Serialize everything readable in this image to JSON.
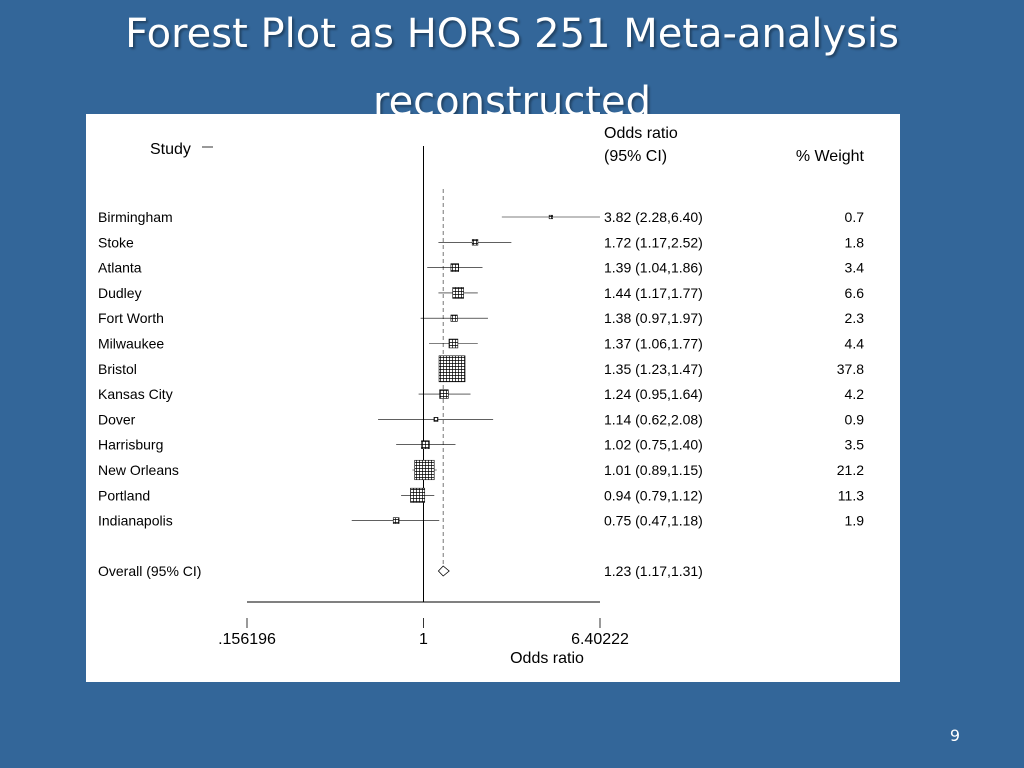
{
  "slide": {
    "title_line1": "Forest Plot as HORS 251 Meta-analysis",
    "title_line2": "reconstructed",
    "page_number": "9",
    "background_color": "#336699"
  },
  "chart_data": {
    "type": "forest",
    "header": {
      "study": "Study",
      "or_line1": "Odds ratio",
      "or_line2": "(95% CI)",
      "weight": "% Weight"
    },
    "xlabel": "Odds ratio",
    "x_scale": "log",
    "x_ticks": [
      {
        "value": 0.156196,
        "label": ".156196"
      },
      {
        "value": 1,
        "label": "1"
      },
      {
        "value": 6.40222,
        "label": "6.40222"
      }
    ],
    "xlim": [
      0.156196,
      6.40222
    ],
    "reference_line": 1,
    "studies": [
      {
        "name": "Birmingham",
        "or": 3.82,
        "lo": 2.28,
        "hi": 6.4,
        "ci_text": "3.82 (2.28,6.40)",
        "weight": "0.7"
      },
      {
        "name": "Stoke",
        "or": 1.72,
        "lo": 1.17,
        "hi": 2.52,
        "ci_text": "1.72 (1.17,2.52)",
        "weight": "1.8"
      },
      {
        "name": "Atlanta",
        "or": 1.39,
        "lo": 1.04,
        "hi": 1.86,
        "ci_text": "1.39 (1.04,1.86)",
        "weight": "3.4"
      },
      {
        "name": "Dudley",
        "or": 1.44,
        "lo": 1.17,
        "hi": 1.77,
        "ci_text": "1.44 (1.17,1.77)",
        "weight": "6.6"
      },
      {
        "name": "Fort Worth",
        "or": 1.38,
        "lo": 0.97,
        "hi": 1.97,
        "ci_text": "1.38 (0.97,1.97)",
        "weight": "2.3"
      },
      {
        "name": "Milwaukee",
        "or": 1.37,
        "lo": 1.06,
        "hi": 1.77,
        "ci_text": "1.37 (1.06,1.77)",
        "weight": "4.4"
      },
      {
        "name": "Bristol",
        "or": 1.35,
        "lo": 1.23,
        "hi": 1.47,
        "ci_text": "1.35 (1.23,1.47)",
        "weight": "37.8"
      },
      {
        "name": "Kansas City",
        "or": 1.24,
        "lo": 0.95,
        "hi": 1.64,
        "ci_text": "1.24 (0.95,1.64)",
        "weight": "4.2"
      },
      {
        "name": "Dover",
        "or": 1.14,
        "lo": 0.62,
        "hi": 2.08,
        "ci_text": "1.14 (0.62,2.08)",
        "weight": "0.9"
      },
      {
        "name": "Harrisburg",
        "or": 1.02,
        "lo": 0.75,
        "hi": 1.4,
        "ci_text": "1.02 (0.75,1.40)",
        "weight": "3.5"
      },
      {
        "name": "New Orleans",
        "or": 1.01,
        "lo": 0.89,
        "hi": 1.15,
        "ci_text": "1.01 (0.89,1.15)",
        "weight": "21.2"
      },
      {
        "name": "Portland",
        "or": 0.94,
        "lo": 0.79,
        "hi": 1.12,
        "ci_text": "0.94 (0.79,1.12)",
        "weight": "11.3"
      },
      {
        "name": "Indianapolis",
        "or": 0.75,
        "lo": 0.47,
        "hi": 1.18,
        "ci_text": "0.75 (0.47,1.18)",
        "weight": "1.9"
      }
    ],
    "overall": {
      "name": "Overall (95% CI)",
      "or": 1.23,
      "lo": 1.17,
      "hi": 1.31,
      "ci_text": "1.23 (1.17,1.31)"
    }
  }
}
